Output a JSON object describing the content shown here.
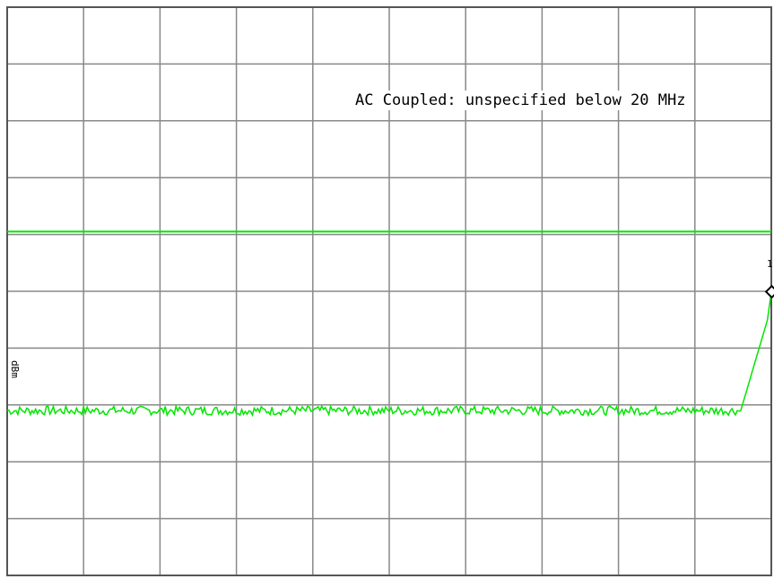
{
  "instrument": {
    "banner_text": "AC Coupled: unspecified below 20 MHz",
    "side_label": "dBm",
    "marker": {
      "label": "1"
    },
    "display": {
      "grid_divisions_x": 10,
      "grid_divisions_y": 10,
      "trace_color": "#00e600",
      "limit_line_color": "#00e600",
      "grid_color": "#888888",
      "frame_color": "#555555"
    }
  },
  "chart_data": {
    "type": "line",
    "title": "",
    "xlabel": "",
    "ylabel": "",
    "grid": true,
    "xlim": [
      0,
      10
    ],
    "ylim": [
      0,
      10
    ],
    "series": [
      {
        "name": "",
        "x": [
          0,
          1,
          2,
          3,
          4,
          5,
          6,
          7,
          8,
          9,
          9.6,
          9.95,
          10
        ],
        "values": [
          2.9,
          2.9,
          2.9,
          2.9,
          2.9,
          2.9,
          2.9,
          2.9,
          2.9,
          2.9,
          2.9,
          4.5,
          5.0
        ]
      }
    ],
    "threshold_line": {
      "y": 6.05
    },
    "marker": {
      "x": 10,
      "y": 5.0,
      "label": "1"
    }
  }
}
